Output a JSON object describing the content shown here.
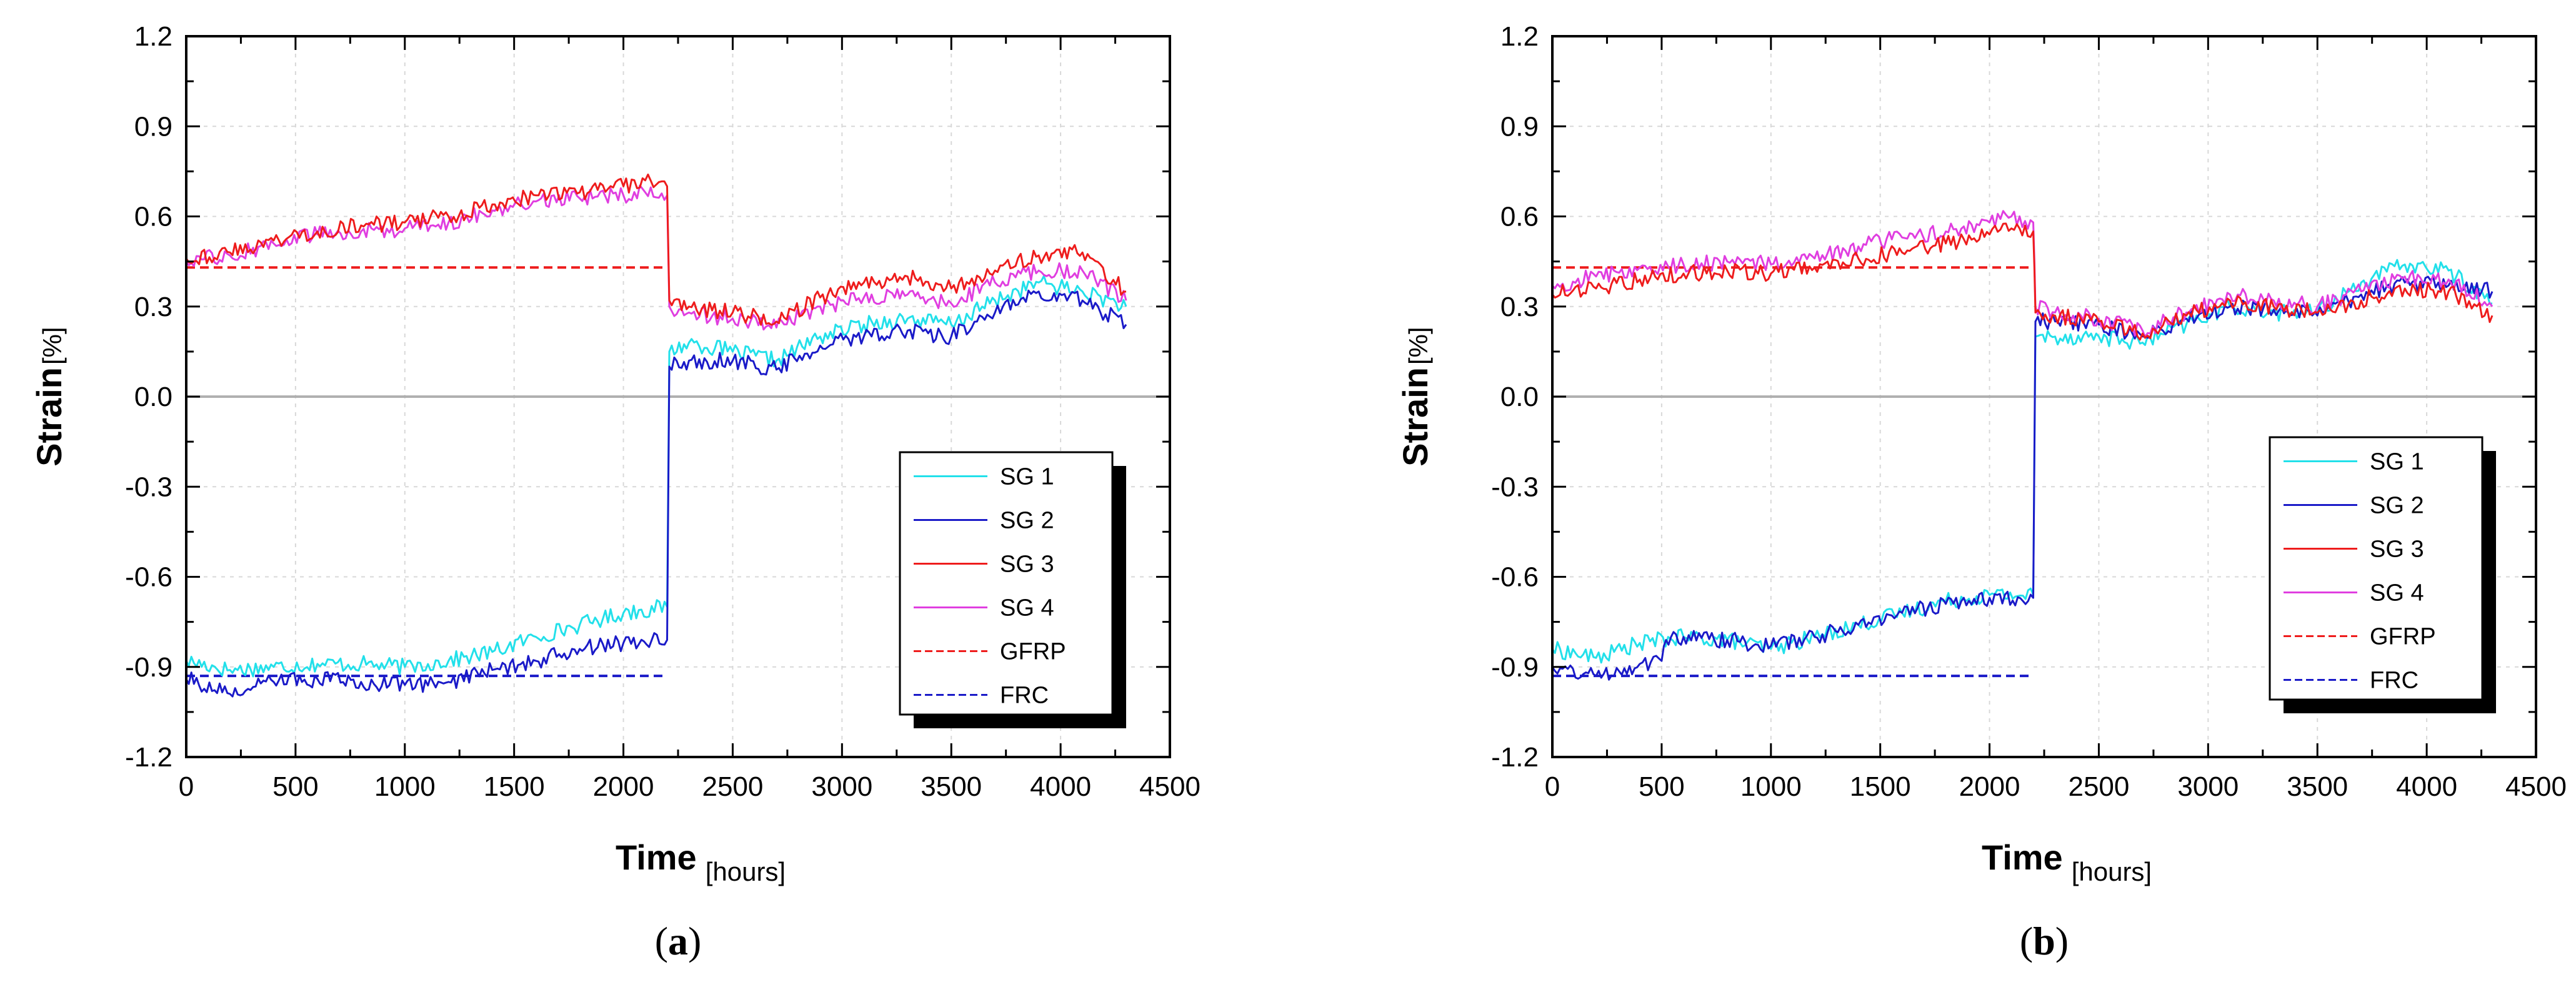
{
  "colors": {
    "SG 1": "#22e0ea",
    "SG 2": "#1a1ac8",
    "SG 3": "#ee1c1c",
    "SG 4": "#e03ee0",
    "GFRP": "#ee1c1c",
    "FRC": "#1a1ac8",
    "zero_line": "#b0b0b0",
    "grid": "#d8d8d8"
  },
  "chart_data": [
    {
      "type": "line",
      "panel_label_prefix": "(",
      "panel_label_letter": "a",
      "panel_label_suffix": ")",
      "xlabel": "Time",
      "xlabel_unit": "[hours]",
      "ylabel": "Strain",
      "ylabel_unit": "[%]",
      "xlim": [
        0,
        4500
      ],
      "ylim": [
        -1.2,
        1.2
      ],
      "xticks": [
        0,
        500,
        1000,
        1500,
        2000,
        2500,
        3000,
        3500,
        4000,
        4500
      ],
      "yticks": [
        -1.2,
        -0.9,
        -0.6,
        -0.3,
        0.0,
        0.3,
        0.6,
        0.9,
        1.2
      ],
      "ytick_labels": [
        "-1.2",
        "-0.9",
        "-0.6",
        "-0.3",
        "0.0",
        "0.3",
        "0.6",
        "0.9",
        "1.2"
      ],
      "grid": true,
      "legend_position": "right",
      "reference_lines": [
        {
          "name": "GFRP",
          "y": 0.43,
          "x_range": [
            0,
            2200
          ],
          "style": "dashed"
        },
        {
          "name": "FRC",
          "y": -0.93,
          "x_range": [
            0,
            2200
          ],
          "style": "dashed"
        }
      ],
      "series": [
        {
          "name": "SG 1",
          "x": [
            0,
            200,
            400,
            600,
            800,
            1000,
            1200,
            1400,
            1600,
            1800,
            2000,
            2200,
            2210,
            2300,
            2500,
            2700,
            2900,
            3100,
            3300,
            3500,
            3700,
            3900,
            4100,
            4300
          ],
          "y": [
            -0.88,
            -0.91,
            -0.9,
            -0.89,
            -0.89,
            -0.9,
            -0.88,
            -0.85,
            -0.8,
            -0.76,
            -0.72,
            -0.7,
            0.15,
            0.18,
            0.15,
            0.12,
            0.2,
            0.24,
            0.26,
            0.24,
            0.32,
            0.38,
            0.35,
            0.3
          ]
        },
        {
          "name": "SG 2",
          "x": [
            0,
            200,
            400,
            600,
            800,
            1000,
            1200,
            1400,
            1600,
            1800,
            2000,
            2200,
            2210,
            2300,
            2500,
            2700,
            2900,
            3100,
            3300,
            3500,
            3700,
            3900,
            4100,
            4300
          ],
          "y": [
            -0.94,
            -0.99,
            -0.95,
            -0.94,
            -0.95,
            -0.96,
            -0.95,
            -0.91,
            -0.88,
            -0.84,
            -0.82,
            -0.81,
            0.1,
            0.12,
            0.12,
            0.09,
            0.17,
            0.2,
            0.22,
            0.2,
            0.28,
            0.35,
            0.32,
            0.24
          ]
        },
        {
          "name": "SG 3",
          "x": [
            0,
            200,
            400,
            600,
            800,
            1000,
            1200,
            1400,
            1600,
            1800,
            2000,
            2100,
            2200,
            2210,
            2300,
            2500,
            2700,
            2900,
            3100,
            3300,
            3500,
            3700,
            3900,
            4100,
            4300
          ],
          "y": [
            0.46,
            0.48,
            0.52,
            0.55,
            0.57,
            0.58,
            0.6,
            0.64,
            0.67,
            0.68,
            0.7,
            0.72,
            0.7,
            0.32,
            0.3,
            0.28,
            0.25,
            0.33,
            0.38,
            0.4,
            0.36,
            0.42,
            0.47,
            0.48,
            0.35
          ]
        },
        {
          "name": "SG 4",
          "x": [
            0,
            200,
            400,
            600,
            800,
            1000,
            1200,
            1400,
            1600,
            1800,
            2000,
            2100,
            2200,
            2210,
            2300,
            2500,
            2700,
            2900,
            3100,
            3300,
            3500,
            3700,
            3900,
            4100,
            4300
          ],
          "y": [
            0.45,
            0.47,
            0.51,
            0.54,
            0.55,
            0.56,
            0.58,
            0.62,
            0.65,
            0.66,
            0.67,
            0.68,
            0.67,
            0.3,
            0.28,
            0.26,
            0.23,
            0.3,
            0.33,
            0.34,
            0.31,
            0.38,
            0.42,
            0.42,
            0.32
          ]
        }
      ]
    },
    {
      "type": "line",
      "panel_label_prefix": "(",
      "panel_label_letter": "b",
      "panel_label_suffix": ")",
      "xlabel": "Time",
      "xlabel_unit": "[hours]",
      "ylabel": "Strain",
      "ylabel_unit": "[%]",
      "xlim": [
        0,
        4500
      ],
      "ylim": [
        -1.2,
        1.2
      ],
      "xticks": [
        0,
        500,
        1000,
        1500,
        2000,
        2500,
        3000,
        3500,
        4000,
        4500
      ],
      "yticks": [
        -1.2,
        -0.9,
        -0.6,
        -0.3,
        0.0,
        0.3,
        0.6,
        0.9,
        1.2
      ],
      "ytick_labels": [
        "-1.2",
        "-0.9",
        "-0.6",
        "-0.3",
        "0.0",
        "0.3",
        "0.6",
        "0.9",
        "1.2"
      ],
      "grid": true,
      "legend_position": "right",
      "reference_lines": [
        {
          "name": "GFRP",
          "y": 0.43,
          "x_range": [
            0,
            2200
          ],
          "style": "dashed"
        },
        {
          "name": "FRC",
          "y": -0.93,
          "x_range": [
            0,
            2200
          ],
          "style": "dashed"
        }
      ],
      "series": [
        {
          "name": "SG 1",
          "x": [
            0,
            200,
            400,
            600,
            800,
            1000,
            1200,
            1400,
            1600,
            1800,
            2000,
            2200,
            2210,
            2300,
            2500,
            2700,
            2900,
            3100,
            3300,
            3500,
            3700,
            3900,
            4100,
            4300
          ],
          "y": [
            -0.84,
            -0.87,
            -0.82,
            -0.8,
            -0.81,
            -0.84,
            -0.8,
            -0.76,
            -0.72,
            -0.68,
            -0.66,
            -0.66,
            0.2,
            0.2,
            0.2,
            0.18,
            0.24,
            0.3,
            0.28,
            0.28,
            0.38,
            0.44,
            0.42,
            0.31
          ]
        },
        {
          "name": "SG 2",
          "x": [
            0,
            200,
            400,
            500,
            520,
            600,
            800,
            1000,
            1200,
            1400,
            1600,
            1800,
            2000,
            2200,
            2210,
            2300,
            2500,
            2700,
            2900,
            3100,
            3300,
            3500,
            3700,
            3900,
            4100,
            4300
          ],
          "y": [
            -0.9,
            -0.93,
            -0.89,
            -0.88,
            -0.81,
            -0.8,
            -0.81,
            -0.83,
            -0.8,
            -0.76,
            -0.72,
            -0.69,
            -0.67,
            -0.67,
            0.25,
            0.25,
            0.24,
            0.2,
            0.26,
            0.3,
            0.29,
            0.27,
            0.34,
            0.38,
            0.37,
            0.35
          ]
        },
        {
          "name": "SG 3",
          "x": [
            0,
            200,
            400,
            600,
            800,
            1000,
            1200,
            1400,
            1600,
            1800,
            2000,
            2100,
            2200,
            2210,
            2300,
            2500,
            2700,
            2900,
            3100,
            3300,
            3500,
            3700,
            3900,
            4100,
            4300
          ],
          "y": [
            0.34,
            0.36,
            0.39,
            0.41,
            0.42,
            0.41,
            0.43,
            0.46,
            0.48,
            0.51,
            0.54,
            0.56,
            0.55,
            0.28,
            0.27,
            0.25,
            0.21,
            0.27,
            0.32,
            0.3,
            0.28,
            0.32,
            0.36,
            0.35,
            0.27
          ]
        },
        {
          "name": "SG 4",
          "x": [
            0,
            200,
            400,
            600,
            800,
            1000,
            1200,
            1400,
            1600,
            1800,
            2000,
            2100,
            2200,
            2210,
            2300,
            2500,
            2700,
            2900,
            3100,
            3300,
            3500,
            3700,
            3900,
            4100,
            4300
          ],
          "y": [
            0.37,
            0.4,
            0.43,
            0.44,
            0.45,
            0.44,
            0.46,
            0.5,
            0.53,
            0.55,
            0.58,
            0.6,
            0.58,
            0.3,
            0.28,
            0.26,
            0.22,
            0.28,
            0.34,
            0.32,
            0.3,
            0.35,
            0.4,
            0.39,
            0.3
          ]
        }
      ]
    }
  ]
}
